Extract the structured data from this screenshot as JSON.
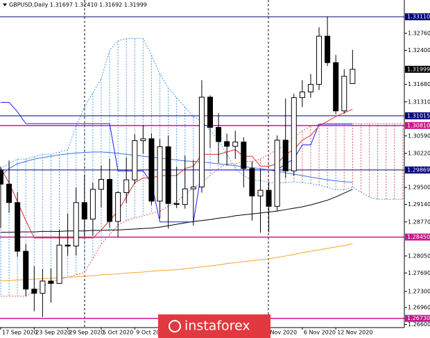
{
  "chart_data": {
    "type": "candlestick",
    "header": "GBPUSD,Daily 1.31697 1.32410 1.31692 1.31999",
    "watermark": "instaforex",
    "categories": [
      "17 Sep 2020",
      null,
      null,
      null,
      "23 Sep 2020",
      null,
      null,
      null,
      "29 Sep 2020",
      null,
      null,
      null,
      "5 Oct 2020",
      null,
      null,
      null,
      "9 Oct 2020",
      null,
      null,
      null,
      null,
      null,
      null,
      null,
      null,
      null,
      null,
      null,
      null,
      null,
      null,
      null,
      "Nov 2020",
      null,
      null,
      null,
      "6 Nov 2020",
      null,
      null,
      null,
      "12 Nov 2020",
      null,
      null,
      null,
      null,
      null,
      null,
      null,
      null
    ],
    "open": [
      1.2987,
      1.2957,
      1.2918,
      1.2815,
      1.2735,
      1.2726,
      1.2752,
      1.2747,
      1.2828,
      1.2826,
      1.2918,
      1.2883,
      1.2946,
      1.2967,
      1.2878,
      1.2939,
      1.2966,
      1.3049,
      1.3053,
      1.2921,
      1.3036,
      1.2916,
      1.2914,
      1.2947,
      1.2951,
      1.3141,
      1.3077,
      1.3047,
      1.3037,
      1.3046,
      1.299,
      1.2932,
      1.2944,
      1.291,
      1.305,
      1.2985,
      1.314,
      1.3152,
      1.3168,
      1.327,
      1.3214,
      1.3112,
      1.31697,
      null,
      null,
      null,
      null,
      null,
      null
    ],
    "high": [
      1.2994,
      1.3007,
      1.294,
      1.283,
      1.2783,
      1.2777,
      1.2779,
      1.2861,
      1.2895,
      1.295,
      1.2977,
      1.296,
      1.2996,
      1.3011,
      1.2942,
      1.3014,
      1.3062,
      1.3082,
      1.3064,
      1.3052,
      1.306,
      1.2994,
      1.3017,
      1.3008,
      1.3177,
      1.3145,
      1.3107,
      1.3064,
      1.307,
      1.3056,
      1.3005,
      1.2989,
      1.2961,
      1.306,
      1.3138,
      1.3148,
      1.3177,
      1.319,
      1.3289,
      1.3311,
      1.323,
      1.32,
      1.3241,
      null,
      null,
      null,
      null,
      null,
      null
    ],
    "low": [
      1.2864,
      1.2896,
      1.2804,
      1.272,
      1.2688,
      1.2676,
      1.2706,
      1.2746,
      1.2806,
      1.2806,
      1.2846,
      1.2848,
      1.2908,
      1.2865,
      1.2845,
      1.2917,
      1.2957,
      1.3021,
      1.2913,
      1.2884,
      1.2863,
      1.2906,
      1.2905,
      1.2869,
      1.2939,
      1.3034,
      1.3002,
      1.2996,
      1.301,
      1.295,
      1.288,
      1.2854,
      1.2855,
      1.29,
      1.297,
      1.2975,
      1.312,
      1.314,
      1.3156,
      1.3207,
      1.3105,
      1.3106,
      1.31692,
      null,
      null,
      null,
      null,
      null,
      null
    ],
    "close": [
      1.2957,
      1.2918,
      1.2815,
      1.2735,
      1.2726,
      1.2752,
      1.2747,
      1.2828,
      1.2826,
      1.2918,
      1.2883,
      1.2946,
      1.2967,
      1.2878,
      1.2939,
      1.2966,
      1.3049,
      1.3053,
      1.2921,
      1.3036,
      1.2916,
      1.2914,
      1.2947,
      1.2951,
      1.3141,
      1.3077,
      1.3047,
      1.3037,
      1.3046,
      1.299,
      1.2932,
      1.2944,
      1.291,
      1.305,
      1.2985,
      1.314,
      1.3152,
      1.3168,
      1.327,
      1.3214,
      1.3112,
      1.3185,
      1.31999,
      null,
      null,
      null,
      null,
      null,
      null
    ],
    "up_color": "#ffffff",
    "down_color": "#000000",
    "lines": [
      {
        "color": "#f5a623",
        "values": [
          1.2752,
          1.2753,
          1.2754,
          1.2755,
          1.2756,
          1.2757,
          1.2758,
          1.2759,
          1.276,
          1.2761,
          1.2762,
          1.2763,
          1.2765,
          1.2766,
          1.2767,
          1.2769,
          1.277,
          1.2771,
          1.2773,
          1.2774,
          1.2775,
          1.2776,
          1.2778,
          1.278,
          1.2782,
          1.2784,
          1.2786,
          1.2789,
          1.2791,
          1.2793,
          1.2795,
          1.2797,
          1.2799,
          1.2802,
          1.2805,
          1.2808,
          1.2812,
          1.2815,
          1.2818,
          1.2821,
          1.2824,
          1.2827,
          1.2831,
          null,
          null,
          null,
          null,
          null,
          null
        ]
      },
      {
        "color": "#000000",
        "values": [
          1.2855,
          1.2855,
          1.2856,
          1.2856,
          1.2856,
          1.2857,
          1.2857,
          1.2857,
          1.2858,
          1.2858,
          1.2858,
          1.2859,
          1.2859,
          1.286,
          1.286,
          1.2861,
          1.2862,
          1.2863,
          1.2864,
          1.2866,
          1.2869,
          1.2872,
          1.2875,
          1.2878,
          1.288,
          1.2882,
          1.2885,
          1.2887,
          1.289,
          1.2892,
          1.2894,
          1.2896,
          1.2898,
          1.29,
          1.2903,
          1.2906,
          1.2909,
          1.2913,
          1.2918,
          1.2923,
          1.293,
          1.2938,
          1.2946,
          null,
          null,
          null,
          null,
          null,
          null
        ]
      },
      {
        "color": "#3a6fd8",
        "values": [
          1.2975,
          1.299,
          1.3,
          1.3005,
          1.301,
          1.3013,
          1.3016,
          1.3019,
          1.3021,
          1.3023,
          1.3024,
          1.3025,
          1.3025,
          1.3024,
          1.3022,
          1.302,
          1.3018,
          1.3016,
          1.3014,
          1.3012,
          1.301,
          1.3008,
          1.3006,
          1.3005,
          1.3004,
          1.3002,
          1.3,
          1.2998,
          1.2996,
          1.2994,
          1.2992,
          1.299,
          1.2987,
          1.2984,
          1.2981,
          1.2978,
          1.2975,
          1.2972,
          1.2969,
          1.2966,
          1.2964,
          1.2962,
          1.2961,
          null,
          null,
          null,
          null,
          null,
          null
        ]
      },
      {
        "color": "#1a1aff",
        "values": [
          1.313,
          1.313,
          1.311,
          1.3085,
          1.3085,
          1.3085,
          1.3085,
          1.3085,
          1.3085,
          1.3085,
          1.3085,
          1.3085,
          1.3085,
          1.3085,
          1.2985,
          1.2985,
          1.2985,
          1.2985,
          1.296,
          1.2877,
          1.2877,
          1.2877,
          1.2877,
          1.2877,
          1.2987,
          1.2987,
          1.2987,
          1.2987,
          1.2987,
          1.2987,
          1.2987,
          1.2987,
          1.2987,
          1.2987,
          1.3,
          1.301,
          1.304,
          1.304,
          1.3084,
          1.3084,
          1.3084,
          1.3084,
          1.3084,
          null,
          null,
          null,
          null,
          null,
          null
        ]
      },
      {
        "color": "#e52b2b",
        "values": [
          1.299,
          1.296,
          1.292,
          1.288,
          1.2843,
          1.2843,
          1.2843,
          1.2843,
          1.2843,
          1.2843,
          1.2843,
          1.2843,
          1.286,
          1.288,
          1.29,
          1.293,
          1.296,
          1.297,
          1.297,
          1.2975,
          1.2975,
          1.2975,
          1.299,
          1.2995,
          1.302,
          1.302,
          1.302,
          1.3025,
          1.303,
          1.3016,
          1.3016,
          1.2995,
          1.2995,
          1.3,
          1.302,
          1.303,
          1.305,
          1.306,
          1.308,
          1.309,
          1.31,
          1.3108,
          1.3115,
          null,
          null,
          null,
          null,
          null,
          null
        ]
      }
    ],
    "cloud": {
      "span_a": {
        "color": "#4a9be8",
        "values": [
          1.299,
          1.3,
          1.301,
          1.301,
          1.3015,
          1.302,
          1.302,
          1.3025,
          1.303,
          1.308,
          1.312,
          1.315,
          1.318,
          1.324,
          1.326,
          1.3265,
          1.3265,
          1.3265,
          1.323,
          1.319,
          1.316,
          1.314,
          1.312,
          1.31,
          1.309,
          1.307,
          1.305,
          1.302,
          1.299,
          1.2975,
          1.2965,
          1.2965,
          1.296,
          1.296,
          1.296,
          1.2962,
          1.296,
          1.2958,
          1.2955,
          1.295,
          1.2945,
          1.2945,
          1.295,
          1.294,
          1.293,
          1.2925,
          1.2925,
          1.2925,
          1.2925
        ]
      },
      "span_b": {
        "color": "#e05555",
        "values": [
          1.272,
          1.272,
          1.272,
          1.272,
          1.273,
          1.274,
          1.275,
          1.2755,
          1.276,
          1.2765,
          1.277,
          1.28,
          1.283,
          1.285,
          1.287,
          1.288,
          1.2885,
          1.289,
          1.2895,
          1.29,
          1.291,
          1.292,
          1.2935,
          1.295,
          1.296,
          1.2975,
          1.299,
          1.3,
          1.3,
          1.3005,
          1.3005,
          1.301,
          1.302,
          1.303,
          1.304,
          1.3055,
          1.307,
          1.308,
          1.3083,
          1.3085,
          1.3085,
          1.3085,
          1.3085,
          1.3085,
          1.3085,
          1.3085,
          1.3085,
          1.3085,
          1.3085
        ]
      }
    },
    "levels": [
      {
        "price": {
          "value": 1.3311,
          "label": "1.33110"
        },
        "color": "#000080"
      },
      {
        "price": 1.31015,
        "color": "#000080"
      },
      {
        "price": {
          "value": 1.3081,
          "label": "1.30810"
        },
        "color": "#c8188c"
      },
      {
        "price": 1.29869,
        "color": "#000080"
      },
      {
        "price": {
          "value": 1.2845,
          "label": "1.28450"
        },
        "color": "#c8188c"
      },
      {
        "price": {
          "value": 1.2673,
          "label": "1.26730"
        },
        "color": "#c8188c"
      }
    ],
    "last_price": 1.31999,
    "ylim": [
      1.26535,
      1.33465
    ],
    "yticks": [
      {
        "value": 1.3276,
        "label": "1.32760"
      },
      {
        "value": 1.324,
        "label": "1.32400"
      },
      {
        "value": 1.3168,
        "label": "1.31680"
      },
      {
        "value": 1.3131,
        "label": "1.31310"
      },
      {
        "value": 1.3059,
        "label": "1.30590"
      },
      {
        "value": 1.3022,
        "label": "1.30220"
      },
      {
        "value": 1.295,
        "label": "1.29500"
      },
      {
        "value": 1.2914,
        "label": "1.29140"
      },
      {
        "value": 1.2877,
        "label": "1.28770"
      },
      {
        "value": 1.2805,
        "label": "1.28050"
      },
      {
        "value": 1.2769,
        "label": "1.27690"
      },
      {
        "value": 1.273,
        "label": "1.27300"
      },
      {
        "value": 1.2696,
        "label": "1.26960"
      },
      {
        "value": 1.266,
        "label": "1.26600"
      }
    ]
  }
}
